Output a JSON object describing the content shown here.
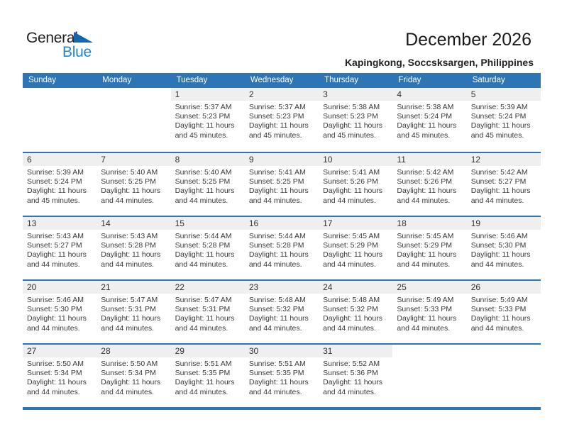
{
  "logo": {
    "word1": "General",
    "word2": "Blue"
  },
  "header": {
    "title": "December 2026",
    "subtitle": "Kapingkong, Soccsksargen, Philippines"
  },
  "colors": {
    "header_blue": "#2e75b6",
    "row_band_gray": "#efefef",
    "logo_blue": "#1e87d5",
    "logo_triangle_blue": "#1566ad"
  },
  "calendar": {
    "weekdays": [
      "Sunday",
      "Monday",
      "Tuesday",
      "Wednesday",
      "Thursday",
      "Friday",
      "Saturday"
    ],
    "labels": {
      "sunrise": "Sunrise:",
      "sunset": "Sunset:",
      "daylight": "Daylight:"
    },
    "weeks": [
      [
        null,
        null,
        {
          "day": 1,
          "sunrise": "5:37 AM",
          "sunset": "5:23 PM",
          "daylight": "11 hours and 45 minutes."
        },
        {
          "day": 2,
          "sunrise": "5:37 AM",
          "sunset": "5:23 PM",
          "daylight": "11 hours and 45 minutes."
        },
        {
          "day": 3,
          "sunrise": "5:38 AM",
          "sunset": "5:23 PM",
          "daylight": "11 hours and 45 minutes."
        },
        {
          "day": 4,
          "sunrise": "5:38 AM",
          "sunset": "5:24 PM",
          "daylight": "11 hours and 45 minutes."
        },
        {
          "day": 5,
          "sunrise": "5:39 AM",
          "sunset": "5:24 PM",
          "daylight": "11 hours and 45 minutes."
        }
      ],
      [
        {
          "day": 6,
          "sunrise": "5:39 AM",
          "sunset": "5:24 PM",
          "daylight": "11 hours and 45 minutes."
        },
        {
          "day": 7,
          "sunrise": "5:40 AM",
          "sunset": "5:25 PM",
          "daylight": "11 hours and 44 minutes."
        },
        {
          "day": 8,
          "sunrise": "5:40 AM",
          "sunset": "5:25 PM",
          "daylight": "11 hours and 44 minutes."
        },
        {
          "day": 9,
          "sunrise": "5:41 AM",
          "sunset": "5:25 PM",
          "daylight": "11 hours and 44 minutes."
        },
        {
          "day": 10,
          "sunrise": "5:41 AM",
          "sunset": "5:26 PM",
          "daylight": "11 hours and 44 minutes."
        },
        {
          "day": 11,
          "sunrise": "5:42 AM",
          "sunset": "5:26 PM",
          "daylight": "11 hours and 44 minutes."
        },
        {
          "day": 12,
          "sunrise": "5:42 AM",
          "sunset": "5:27 PM",
          "daylight": "11 hours and 44 minutes."
        }
      ],
      [
        {
          "day": 13,
          "sunrise": "5:43 AM",
          "sunset": "5:27 PM",
          "daylight": "11 hours and 44 minutes."
        },
        {
          "day": 14,
          "sunrise": "5:43 AM",
          "sunset": "5:28 PM",
          "daylight": "11 hours and 44 minutes."
        },
        {
          "day": 15,
          "sunrise": "5:44 AM",
          "sunset": "5:28 PM",
          "daylight": "11 hours and 44 minutes."
        },
        {
          "day": 16,
          "sunrise": "5:44 AM",
          "sunset": "5:28 PM",
          "daylight": "11 hours and 44 minutes."
        },
        {
          "day": 17,
          "sunrise": "5:45 AM",
          "sunset": "5:29 PM",
          "daylight": "11 hours and 44 minutes."
        },
        {
          "day": 18,
          "sunrise": "5:45 AM",
          "sunset": "5:29 PM",
          "daylight": "11 hours and 44 minutes."
        },
        {
          "day": 19,
          "sunrise": "5:46 AM",
          "sunset": "5:30 PM",
          "daylight": "11 hours and 44 minutes."
        }
      ],
      [
        {
          "day": 20,
          "sunrise": "5:46 AM",
          "sunset": "5:30 PM",
          "daylight": "11 hours and 44 minutes."
        },
        {
          "day": 21,
          "sunrise": "5:47 AM",
          "sunset": "5:31 PM",
          "daylight": "11 hours and 44 minutes."
        },
        {
          "day": 22,
          "sunrise": "5:47 AM",
          "sunset": "5:31 PM",
          "daylight": "11 hours and 44 minutes."
        },
        {
          "day": 23,
          "sunrise": "5:48 AM",
          "sunset": "5:32 PM",
          "daylight": "11 hours and 44 minutes."
        },
        {
          "day": 24,
          "sunrise": "5:48 AM",
          "sunset": "5:32 PM",
          "daylight": "11 hours and 44 minutes."
        },
        {
          "day": 25,
          "sunrise": "5:49 AM",
          "sunset": "5:33 PM",
          "daylight": "11 hours and 44 minutes."
        },
        {
          "day": 26,
          "sunrise": "5:49 AM",
          "sunset": "5:33 PM",
          "daylight": "11 hours and 44 minutes."
        }
      ],
      [
        {
          "day": 27,
          "sunrise": "5:50 AM",
          "sunset": "5:34 PM",
          "daylight": "11 hours and 44 minutes."
        },
        {
          "day": 28,
          "sunrise": "5:50 AM",
          "sunset": "5:34 PM",
          "daylight": "11 hours and 44 minutes."
        },
        {
          "day": 29,
          "sunrise": "5:51 AM",
          "sunset": "5:35 PM",
          "daylight": "11 hours and 44 minutes."
        },
        {
          "day": 30,
          "sunrise": "5:51 AM",
          "sunset": "5:35 PM",
          "daylight": "11 hours and 44 minutes."
        },
        {
          "day": 31,
          "sunrise": "5:52 AM",
          "sunset": "5:36 PM",
          "daylight": "11 hours and 44 minutes."
        },
        null,
        null
      ]
    ]
  }
}
